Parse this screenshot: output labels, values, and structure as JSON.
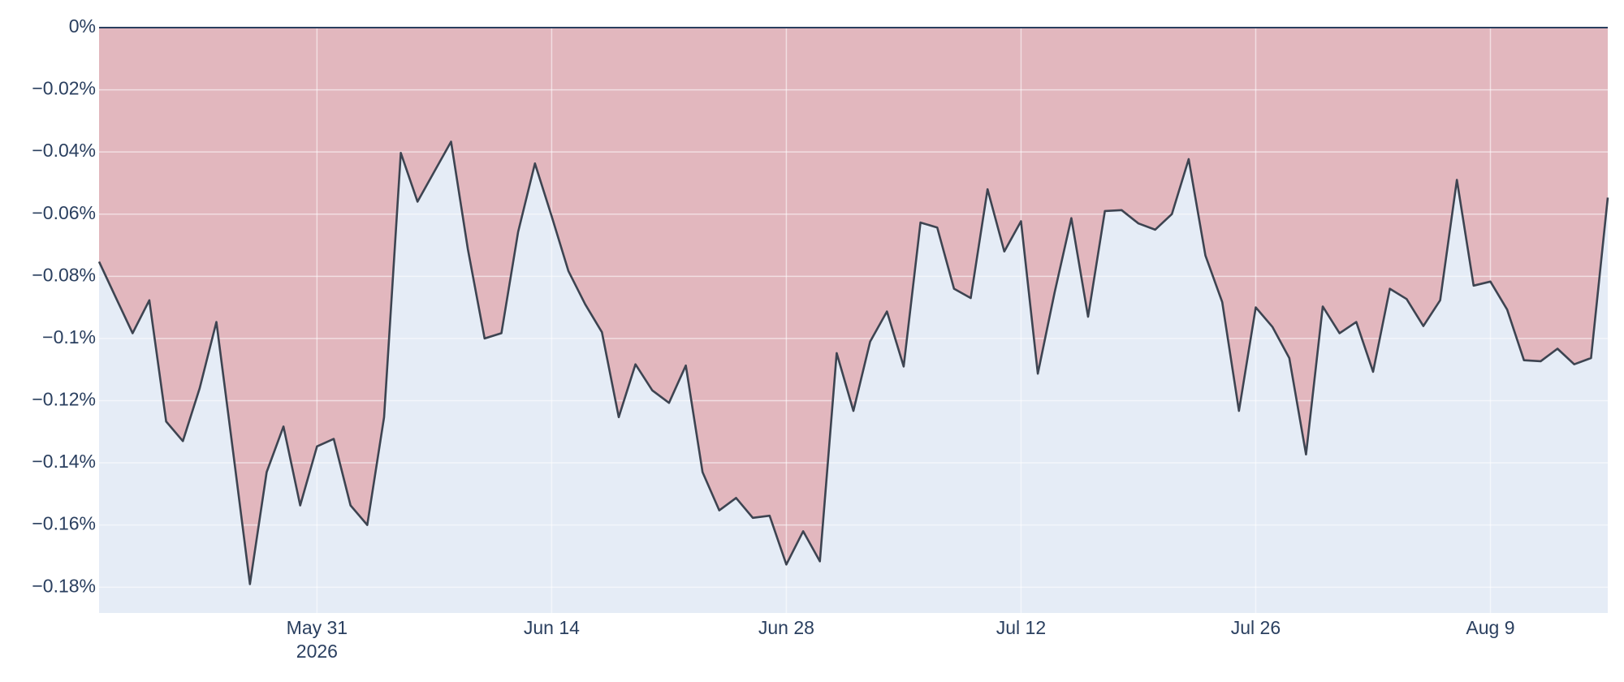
{
  "chart_data": {
    "type": "drawdown",
    "x": [
      "2026-05-18",
      "2026-05-19",
      "2026-05-20",
      "2026-05-21",
      "2026-05-22",
      "2026-05-23",
      "2026-05-24",
      "2026-05-25",
      "2026-05-26",
      "2026-05-27",
      "2026-05-28",
      "2026-05-29",
      "2026-05-30",
      "2026-05-31",
      "2026-06-01",
      "2026-06-02",
      "2026-06-03",
      "2026-06-04",
      "2026-06-05",
      "2026-06-06",
      "2026-06-07",
      "2026-06-08",
      "2026-06-09",
      "2026-06-10",
      "2026-06-11",
      "2026-06-12",
      "2026-06-13",
      "2026-06-14",
      "2026-06-15",
      "2026-06-16",
      "2026-06-17",
      "2026-06-18",
      "2026-06-19",
      "2026-06-20",
      "2026-06-21",
      "2026-06-22",
      "2026-06-23",
      "2026-06-24",
      "2026-06-25",
      "2026-06-26",
      "2026-06-27",
      "2026-06-28",
      "2026-06-29",
      "2026-06-30",
      "2026-07-01",
      "2026-07-02",
      "2026-07-03",
      "2026-07-04",
      "2026-07-05",
      "2026-07-06",
      "2026-07-07",
      "2026-07-08",
      "2026-07-09",
      "2026-07-10",
      "2026-07-11",
      "2026-07-12",
      "2026-07-13",
      "2026-07-14",
      "2026-07-15",
      "2026-07-16",
      "2026-07-17",
      "2026-07-18",
      "2026-07-19",
      "2026-07-20",
      "2026-07-21",
      "2026-07-22",
      "2026-07-23",
      "2026-07-24",
      "2026-07-25",
      "2026-07-26",
      "2026-07-27",
      "2026-07-28",
      "2026-07-29",
      "2026-07-30",
      "2026-07-31",
      "2026-08-01",
      "2026-08-02",
      "2026-08-03",
      "2026-08-04",
      "2026-08-05",
      "2026-08-06",
      "2026-08-07",
      "2026-08-08",
      "2026-08-09",
      "2026-08-10",
      "2026-08-11",
      "2026-08-12",
      "2026-08-13",
      "2026-08-14",
      "2026-08-15",
      "2026-08-16"
    ],
    "values": [
      -0.0753,
      -0.0868,
      -0.0983,
      -0.0877,
      -0.1267,
      -0.133,
      -0.116,
      -0.0947,
      -0.1367,
      -0.179,
      -0.143,
      -0.1283,
      -0.1537,
      -0.1347,
      -0.1323,
      -0.1537,
      -0.16,
      -0.1253,
      -0.0403,
      -0.056,
      -0.0463,
      -0.0367,
      -0.0713,
      -0.1,
      -0.0983,
      -0.0657,
      -0.0437,
      -0.0607,
      -0.0783,
      -0.089,
      -0.098,
      -0.1253,
      -0.1083,
      -0.1167,
      -0.1207,
      -0.1087,
      -0.143,
      -0.1553,
      -0.1513,
      -0.1577,
      -0.157,
      -0.1727,
      -0.162,
      -0.1717,
      -0.1047,
      -0.1233,
      -0.101,
      -0.0913,
      -0.109,
      -0.0627,
      -0.0643,
      -0.084,
      -0.087,
      -0.052,
      -0.072,
      -0.0623,
      -0.1113,
      -0.0853,
      -0.0613,
      -0.093,
      -0.059,
      -0.0587,
      -0.063,
      -0.065,
      -0.06,
      -0.0423,
      -0.0733,
      -0.0883,
      -0.1233,
      -0.09,
      -0.0963,
      -0.1063,
      -0.1373,
      -0.0897,
      -0.0983,
      -0.0947,
      -0.1107,
      -0.084,
      -0.0873,
      -0.096,
      -0.0877,
      -0.049,
      -0.083,
      -0.0817,
      -0.0907,
      -0.107,
      -0.1073,
      -0.1033,
      -0.1083,
      -0.1063,
      -0.0547
    ],
    "color": "#3d4451",
    "fill_color": "#e2b7be",
    "background": "#e5ecf6",
    "grid": true,
    "xlim": [
      "2026-05-18",
      "2026-08-16"
    ],
    "xticks": [
      {
        "value": "2026-05-31",
        "label": "May 31",
        "sublabel": "2026"
      },
      {
        "value": "2026-06-14",
        "label": "Jun 14"
      },
      {
        "value": "2026-06-28",
        "label": "Jun 28"
      },
      {
        "value": "2026-07-12",
        "label": "Jul 12"
      },
      {
        "value": "2026-07-26",
        "label": "Jul 26"
      },
      {
        "value": "2026-08-09",
        "label": "Aug 9"
      }
    ],
    "ylim": [
      -0.1883,
      0
    ],
    "yticks": [
      {
        "value": 0,
        "label": "0%"
      },
      {
        "value": -0.02,
        "label": "−0.02%"
      },
      {
        "value": -0.04,
        "label": "−0.04%"
      },
      {
        "value": -0.06,
        "label": "−0.06%"
      },
      {
        "value": -0.08,
        "label": "−0.08%"
      },
      {
        "value": -0.1,
        "label": "−0.1%"
      },
      {
        "value": -0.12,
        "label": "−0.12%"
      },
      {
        "value": -0.14,
        "label": "−0.14%"
      },
      {
        "value": -0.16,
        "label": "−0.16%"
      },
      {
        "value": -0.18,
        "label": "−0.18%"
      }
    ]
  }
}
